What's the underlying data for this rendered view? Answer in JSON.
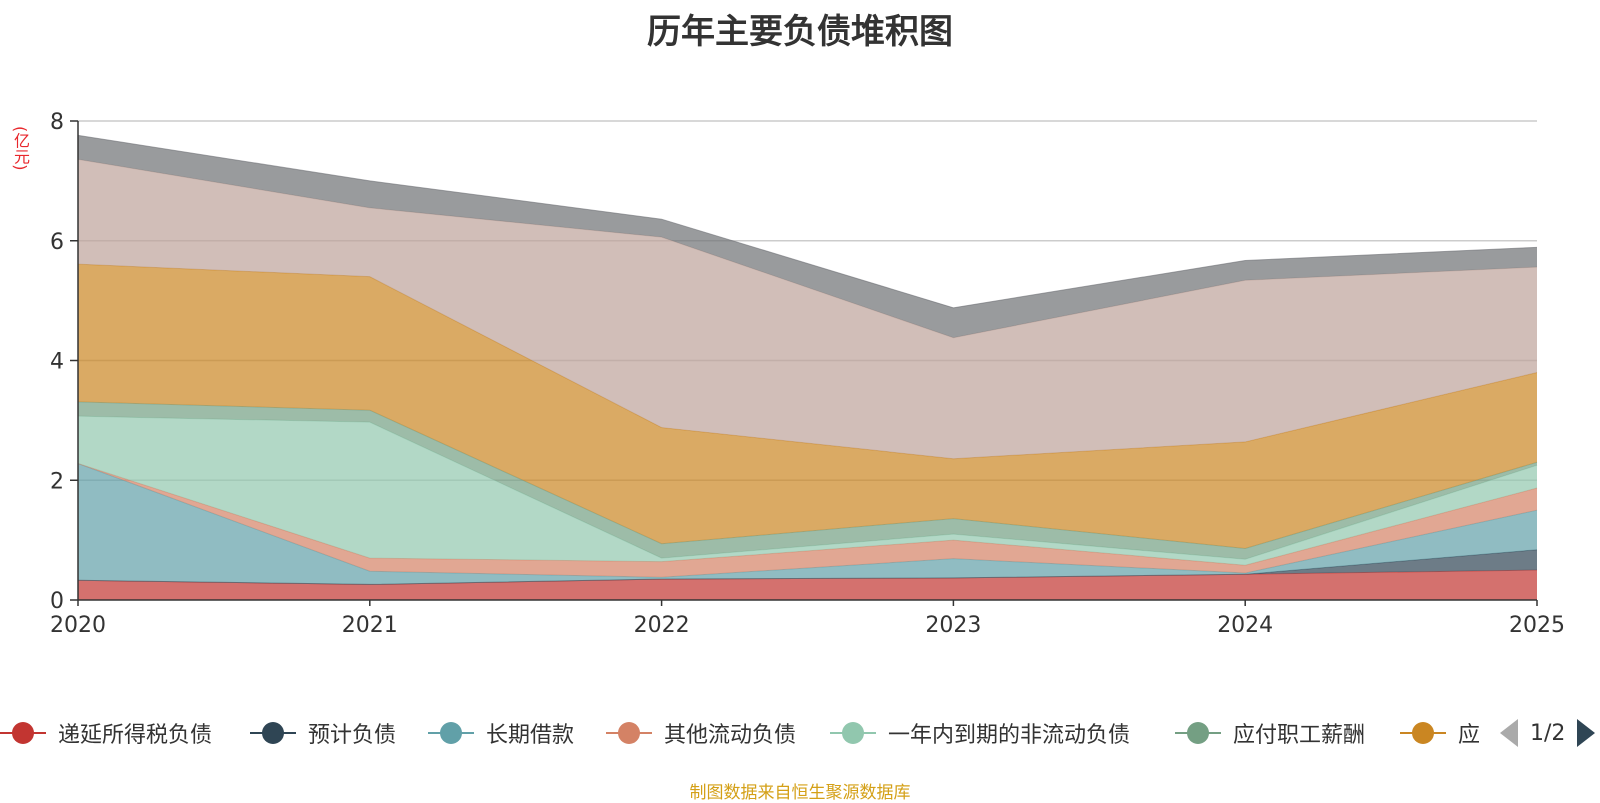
{
  "title": "历年主要负债堆积图",
  "unit": "(亿元)",
  "source_note": "制图数据来自恒生聚源数据库",
  "legend_pager": "1/2",
  "chart_data": {
    "type": "area",
    "stacked": true,
    "title": "历年主要负债堆积图",
    "ylabel": "(亿元)",
    "x": [
      "2020",
      "2021",
      "2022",
      "2023",
      "2024",
      "2025"
    ],
    "ylim": [
      0,
      8
    ],
    "yticks": [
      0,
      2,
      4,
      6,
      8
    ],
    "grid": true,
    "series": [
      {
        "name": "递延所得税负债",
        "color": "#c23531",
        "values": [
          0.33,
          0.26,
          0.35,
          0.37,
          0.43,
          0.5
        ],
        "in_legend": true
      },
      {
        "name": "预计负债",
        "color": "#2f4554",
        "values": [
          0.0,
          0.0,
          0.0,
          0.0,
          0.0,
          0.34
        ],
        "in_legend": true
      },
      {
        "name": "长期借款",
        "color": "#61a0a8",
        "values": [
          1.95,
          0.22,
          0.03,
          0.32,
          0.02,
          0.66
        ],
        "in_legend": true
      },
      {
        "name": "其他流动负债",
        "color": "#d48265",
        "values": [
          0.0,
          0.22,
          0.26,
          0.31,
          0.13,
          0.37
        ],
        "in_legend": true
      },
      {
        "name": "一年内到期的非流动负债",
        "color": "#91c7ae",
        "values": [
          0.79,
          2.27,
          0.06,
          0.1,
          0.1,
          0.38
        ],
        "in_legend": true
      },
      {
        "name": "应付职工薪酬",
        "color": "#749f83",
        "values": [
          0.24,
          0.2,
          0.24,
          0.26,
          0.18,
          0.05
        ],
        "in_legend": true
      },
      {
        "name": "应",
        "color": "#ca8622",
        "values": [
          2.3,
          2.23,
          1.94,
          1.0,
          1.78,
          1.5
        ],
        "in_legend": true
      },
      {
        "name": "",
        "color": "#bda29a",
        "values": [
          1.75,
          1.15,
          3.18,
          2.02,
          2.7,
          1.76
        ],
        "in_legend": false
      },
      {
        "name": "",
        "color": "#6e7074",
        "values": [
          0.4,
          0.45,
          0.3,
          0.5,
          0.33,
          0.33
        ],
        "in_legend": false
      }
    ]
  }
}
